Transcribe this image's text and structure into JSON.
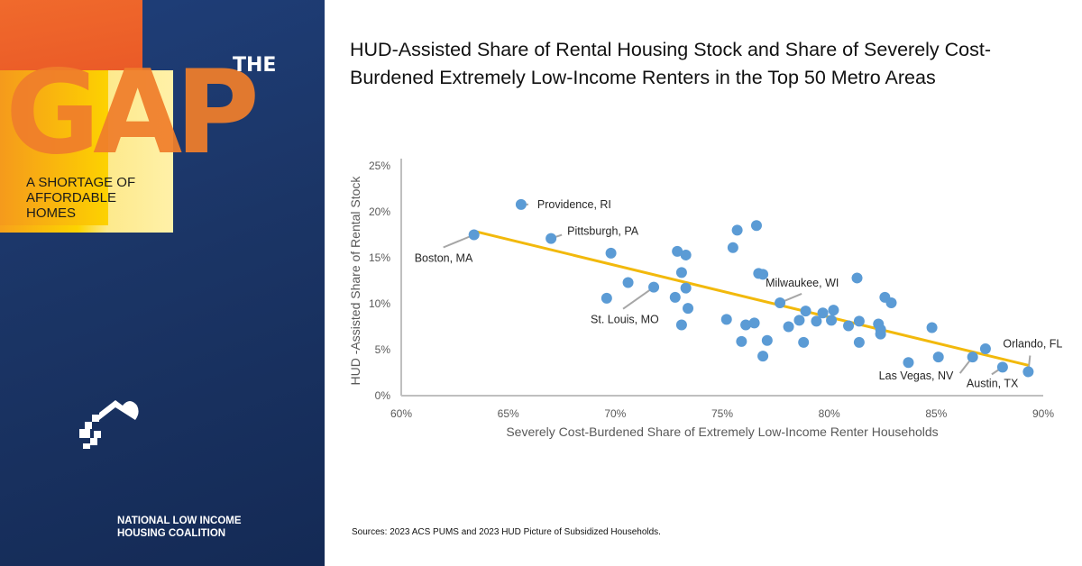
{
  "branding": {
    "the": "THE",
    "gap": "GAP",
    "subtitle": "A SHORTAGE OF AFFORDABLE HOMES",
    "org_line1": "NATIONAL LOW INCOME",
    "org_line2": "HOUSING COALITION"
  },
  "title": "HUD-Assisted Share of Rental Housing Stock and Share of Severely Cost-Burdened Extremely Low-Income Renters in the Top 50 Metro Areas",
  "source": "Sources: 2023 ACS PUMS and 2023 HUD Picture of Subsidized Households.",
  "chart_data": {
    "type": "scatter",
    "xlabel": "Severely Cost-Burdened Share of Extremely Low-Income Renter Households",
    "ylabel": "HUD -Assisted Share of Rental Stock",
    "xlim": [
      60,
      90
    ],
    "ylim": [
      0,
      25
    ],
    "x_ticks": [
      "60%",
      "65%",
      "70%",
      "75%",
      "80%",
      "85%",
      "90%"
    ],
    "y_ticks": [
      "0%",
      "5%",
      "10%",
      "15%",
      "20%",
      "25%"
    ],
    "grid": false,
    "point_color": "#5b9bd5",
    "trend_color": "#f2b90c",
    "trendline": {
      "x": [
        63.4,
        89.3
      ],
      "y": [
        17.9,
        3.3
      ]
    },
    "points": [
      {
        "x": 65.6,
        "y": 20.8,
        "label": "Providence, RI"
      },
      {
        "x": 63.4,
        "y": 17.5,
        "label": "Boston, MA"
      },
      {
        "x": 67.0,
        "y": 17.1,
        "label": "Pittsburgh, PA"
      },
      {
        "x": 69.8,
        "y": 15.5
      },
      {
        "x": 72.9,
        "y": 15.7
      },
      {
        "x": 73.3,
        "y": 15.3
      },
      {
        "x": 73.1,
        "y": 13.4
      },
      {
        "x": 70.6,
        "y": 12.3
      },
      {
        "x": 71.8,
        "y": 11.8,
        "label": "St. Louis, MO"
      },
      {
        "x": 73.3,
        "y": 11.7
      },
      {
        "x": 69.6,
        "y": 10.6
      },
      {
        "x": 72.8,
        "y": 10.7
      },
      {
        "x": 73.4,
        "y": 9.5
      },
      {
        "x": 73.1,
        "y": 7.7
      },
      {
        "x": 75.2,
        "y": 8.3
      },
      {
        "x": 75.7,
        "y": 18.0
      },
      {
        "x": 75.5,
        "y": 16.1
      },
      {
        "x": 76.6,
        "y": 18.5
      },
      {
        "x": 76.7,
        "y": 13.3
      },
      {
        "x": 76.9,
        "y": 13.2
      },
      {
        "x": 77.7,
        "y": 10.1,
        "label": "Milwaukee, WI"
      },
      {
        "x": 81.3,
        "y": 12.8
      },
      {
        "x": 82.6,
        "y": 10.7
      },
      {
        "x": 82.9,
        "y": 10.1
      },
      {
        "x": 76.1,
        "y": 7.7
      },
      {
        "x": 76.5,
        "y": 7.9
      },
      {
        "x": 75.9,
        "y": 5.9
      },
      {
        "x": 77.1,
        "y": 6.0
      },
      {
        "x": 76.9,
        "y": 4.3
      },
      {
        "x": 78.1,
        "y": 7.5
      },
      {
        "x": 78.6,
        "y": 8.2
      },
      {
        "x": 78.9,
        "y": 9.2
      },
      {
        "x": 78.8,
        "y": 5.8
      },
      {
        "x": 79.4,
        "y": 8.1
      },
      {
        "x": 79.7,
        "y": 9.0
      },
      {
        "x": 80.1,
        "y": 8.2
      },
      {
        "x": 80.2,
        "y": 9.3
      },
      {
        "x": 80.9,
        "y": 7.6
      },
      {
        "x": 81.4,
        "y": 8.1
      },
      {
        "x": 81.4,
        "y": 5.8
      },
      {
        "x": 82.3,
        "y": 7.8
      },
      {
        "x": 82.4,
        "y": 6.7
      },
      {
        "x": 82.4,
        "y": 7.2
      },
      {
        "x": 84.8,
        "y": 7.4
      },
      {
        "x": 83.7,
        "y": 3.6
      },
      {
        "x": 85.1,
        "y": 4.2
      },
      {
        "x": 86.7,
        "y": 4.2,
        "label": "Las Vegas, NV"
      },
      {
        "x": 87.3,
        "y": 5.1
      },
      {
        "x": 88.1,
        "y": 3.1,
        "label": "Austin, TX"
      },
      {
        "x": 89.3,
        "y": 2.6,
        "label": "Orlando, FL"
      }
    ]
  }
}
